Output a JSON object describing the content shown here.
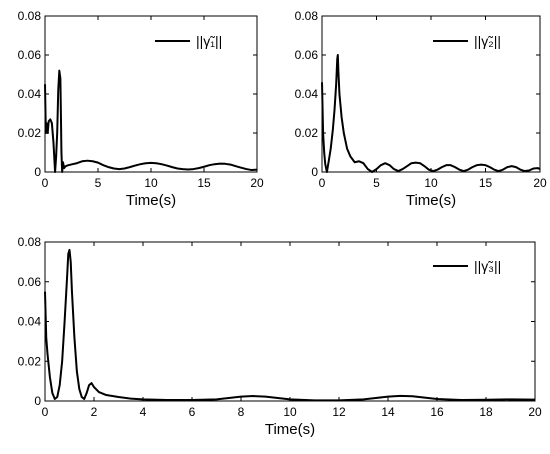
{
  "chart_data": [
    {
      "type": "line",
      "xlabel": "Time(s)",
      "ylabel": "",
      "xlim": [
        0,
        20
      ],
      "ylim": [
        0,
        0.08
      ],
      "xticks": [
        0,
        5,
        10,
        15,
        20
      ],
      "yticks": [
        0,
        0.02,
        0.04,
        0.06,
        0.08
      ],
      "ytick_labels": [
        "0",
        "0.02",
        "0.04",
        "0.06",
        "0.08"
      ],
      "legend_position": "top-right",
      "series": [
        {
          "name": "||γ̃₁||",
          "color": "#000000",
          "x": [
            0,
            0.08,
            0.15,
            0.25,
            0.35,
            0.5,
            0.65,
            0.8,
            0.95,
            1.05,
            1.15,
            1.25,
            1.35,
            1.45,
            1.5,
            1.55,
            1.62,
            1.7,
            1.8,
            1.95,
            2.2,
            2.6,
            3.0,
            3.5,
            4.0,
            4.5,
            5.0,
            5.5,
            6.0,
            6.5,
            7.0,
            7.5,
            8.0,
            8.5,
            9.0,
            9.5,
            10.0,
            10.5,
            11.0,
            11.5,
            12.0,
            12.5,
            13.0,
            13.5,
            14.0,
            14.5,
            15.0,
            15.5,
            16.0,
            16.5,
            17.0,
            17.5,
            18.0,
            18.5,
            19.0,
            19.5,
            20.0
          ],
          "y": [
            0.045,
            0.02,
            0.025,
            0.02,
            0.026,
            0.027,
            0.025,
            0.015,
            0.0,
            0.008,
            0.02,
            0.042,
            0.052,
            0.048,
            0.03,
            0.01,
            0.0,
            0.005,
            0.002,
            0.003,
            0.0035,
            0.004,
            0.0045,
            0.0055,
            0.0058,
            0.0055,
            0.0048,
            0.0035,
            0.0025,
            0.0018,
            0.0015,
            0.0018,
            0.0025,
            0.0033,
            0.004,
            0.0045,
            0.0047,
            0.0045,
            0.004,
            0.0033,
            0.0025,
            0.0018,
            0.0015,
            0.0013,
            0.0015,
            0.002,
            0.0027,
            0.0035,
            0.004,
            0.0043,
            0.0042,
            0.0038,
            0.003,
            0.0022,
            0.0015,
            0.001,
            0.0012
          ]
        }
      ]
    },
    {
      "type": "line",
      "xlabel": "Time(s)",
      "ylabel": "",
      "xlim": [
        0,
        20
      ],
      "ylim": [
        0,
        0.08
      ],
      "xticks": [
        0,
        5,
        10,
        15,
        20
      ],
      "yticks": [
        0,
        0.02,
        0.04,
        0.06,
        0.08
      ],
      "ytick_labels": [
        "0",
        "0.02",
        "0.04",
        "0.06",
        "0.08"
      ],
      "legend_position": "top-right",
      "series": [
        {
          "name": "||γ̃₂||",
          "color": "#000000",
          "x": [
            0,
            0.1,
            0.2,
            0.3,
            0.45,
            0.6,
            0.8,
            1.0,
            1.15,
            1.3,
            1.4,
            1.45,
            1.5,
            1.6,
            1.8,
            2.0,
            2.3,
            2.6,
            3.0,
            3.4,
            3.8,
            4.2,
            4.6,
            5.0,
            5.4,
            5.8,
            6.2,
            6.6,
            7.0,
            7.4,
            7.8,
            8.2,
            8.6,
            9.0,
            9.4,
            9.8,
            10.2,
            10.6,
            11.0,
            11.4,
            11.8,
            12.2,
            12.6,
            13.0,
            13.4,
            13.8,
            14.2,
            14.6,
            15.0,
            15.4,
            15.8,
            16.2,
            16.6,
            17.0,
            17.4,
            17.8,
            18.2,
            18.6,
            19.0,
            19.4,
            19.8,
            20.0
          ],
          "y": [
            0.046,
            0.02,
            0.01,
            0.004,
            0.0,
            0.005,
            0.012,
            0.022,
            0.032,
            0.045,
            0.058,
            0.06,
            0.052,
            0.04,
            0.028,
            0.02,
            0.012,
            0.008,
            0.005,
            0.0055,
            0.0045,
            0.0015,
            0.0,
            0.0015,
            0.0035,
            0.0045,
            0.0035,
            0.0015,
            0.0005,
            0.0015,
            0.003,
            0.0045,
            0.0048,
            0.0045,
            0.003,
            0.0012,
            0.0005,
            0.0012,
            0.0025,
            0.0035,
            0.0035,
            0.0025,
            0.0012,
            0.0005,
            0.0012,
            0.0025,
            0.0035,
            0.0038,
            0.0035,
            0.0025,
            0.0012,
            0.0005,
            0.0012,
            0.0025,
            0.003,
            0.0025,
            0.0012,
            0.0005,
            0.0008,
            0.0018,
            0.002,
            0.0015
          ]
        }
      ]
    },
    {
      "type": "line",
      "xlabel": "Time(s)",
      "ylabel": "",
      "xlim": [
        0,
        20
      ],
      "ylim": [
        0,
        0.08
      ],
      "xticks": [
        0,
        2,
        4,
        6,
        8,
        10,
        12,
        14,
        16,
        18,
        20
      ],
      "yticks": [
        0,
        0.02,
        0.04,
        0.06,
        0.08
      ],
      "ytick_labels": [
        "0",
        "0.02",
        "0.04",
        "0.06",
        "0.08"
      ],
      "legend_position": "top-right",
      "series": [
        {
          "name": "||γ̃₃||",
          "color": "#000000",
          "x": [
            0,
            0.05,
            0.1,
            0.2,
            0.3,
            0.4,
            0.5,
            0.6,
            0.7,
            0.8,
            0.9,
            0.95,
            1.0,
            1.05,
            1.1,
            1.2,
            1.3,
            1.4,
            1.5,
            1.6,
            1.7,
            1.8,
            1.9,
            2.0,
            2.2,
            2.5,
            3.0,
            3.5,
            4.0,
            5.0,
            6.0,
            7.0,
            7.5,
            8.0,
            8.5,
            9.0,
            9.5,
            10.0,
            11.0,
            12.0,
            13.0,
            13.5,
            14.0,
            14.5,
            15.0,
            15.5,
            16.0,
            17.0,
            18.0,
            19.0,
            20.0
          ],
          "y": [
            0.055,
            0.032,
            0.024,
            0.012,
            0.004,
            0.001,
            0.002,
            0.008,
            0.02,
            0.04,
            0.062,
            0.074,
            0.076,
            0.07,
            0.055,
            0.032,
            0.015,
            0.006,
            0.002,
            0.001,
            0.004,
            0.008,
            0.009,
            0.007,
            0.0045,
            0.003,
            0.002,
            0.0012,
            0.0008,
            0.0005,
            0.0005,
            0.0008,
            0.0015,
            0.0022,
            0.0025,
            0.0022,
            0.0015,
            0.0008,
            0.0003,
            0.0003,
            0.0008,
            0.0015,
            0.0022,
            0.0026,
            0.0024,
            0.0017,
            0.001,
            0.0005,
            0.0006,
            0.0008,
            0.0007
          ]
        }
      ]
    }
  ]
}
